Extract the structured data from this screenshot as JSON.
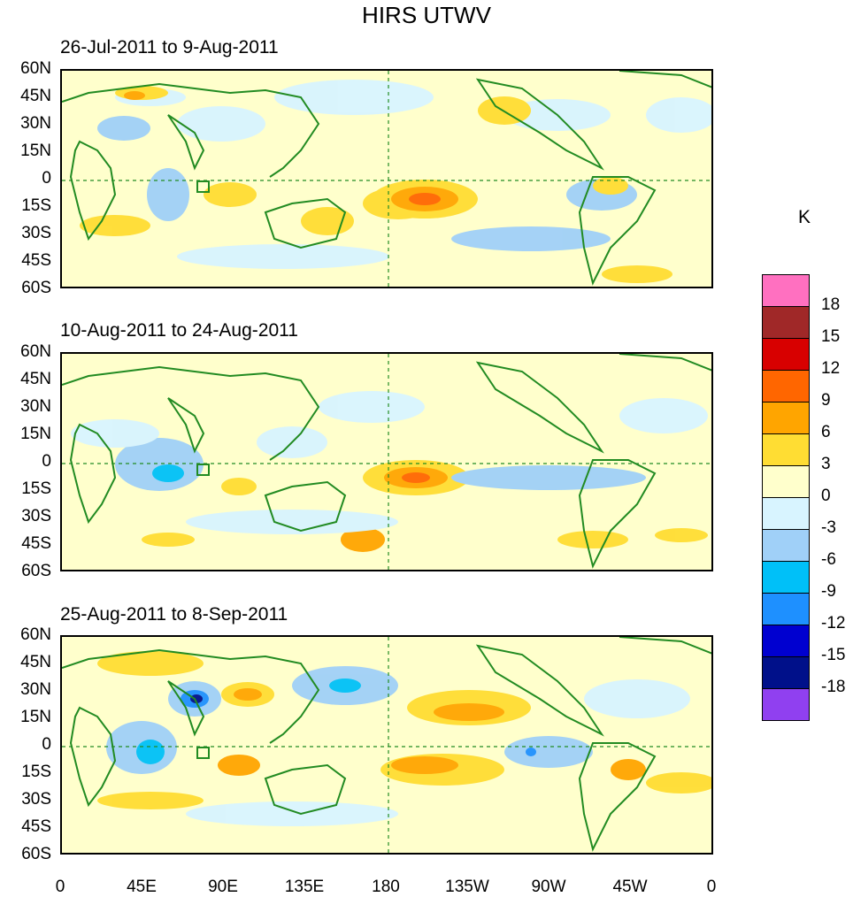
{
  "title": "HIRS UTWV",
  "panels": [
    {
      "subtitle": "26-Jul-2011 to 9-Aug-2011"
    },
    {
      "subtitle": "10-Aug-2011 to 24-Aug-2011"
    },
    {
      "subtitle": "25-Aug-2011 to 8-Sep-2011"
    }
  ],
  "y_tick_labels": [
    "60N",
    "45N",
    "30N",
    "15N",
    "0",
    "15S",
    "30S",
    "45S",
    "60S"
  ],
  "x_tick_labels": [
    "0",
    "45E",
    "90E",
    "135E",
    "180",
    "135W",
    "90W",
    "45W",
    "0"
  ],
  "colorbar": {
    "unit": "K",
    "labels": [
      "18",
      "15",
      "12",
      "9",
      "6",
      "3",
      "0",
      "-3",
      "-6",
      "-9",
      "-12",
      "-15",
      "-18"
    ],
    "colors": [
      "#ff70c0",
      "#a02828",
      "#d80000",
      "#ff6600",
      "#ffa500",
      "#ffdd33",
      "#ffffcc",
      "#d8f4ff",
      "#a0d0f8",
      "#00c0f8",
      "#1e90ff",
      "#0000d0",
      "#00108a",
      "#9040f0"
    ]
  },
  "colors": {
    "coastline": "#228b22",
    "equator_dateline": "#228b22"
  }
}
